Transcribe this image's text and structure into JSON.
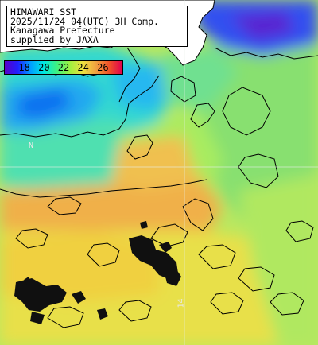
{
  "title": {
    "lines": [
      "HIMAWARI SST",
      "2025/11/24 04(UTC) 3H Comp.",
      "Kanagawa Prefecture",
      "supplied by JAXA"
    ]
  },
  "legend": {
    "unit": "",
    "min": 16,
    "max": 28,
    "ticks": [
      18,
      20,
      22,
      24,
      26
    ],
    "colors": [
      "#5a00c8",
      "#2020ff",
      "#00a0ff",
      "#00e8e0",
      "#40f080",
      "#a0f040",
      "#f0e040",
      "#f0a040",
      "#f05028",
      "#e00050"
    ]
  },
  "map": {
    "land_color": "#ffffff",
    "nodata_color": "#000000",
    "latitude_label": "N",
    "longitude_label": "14"
  }
}
